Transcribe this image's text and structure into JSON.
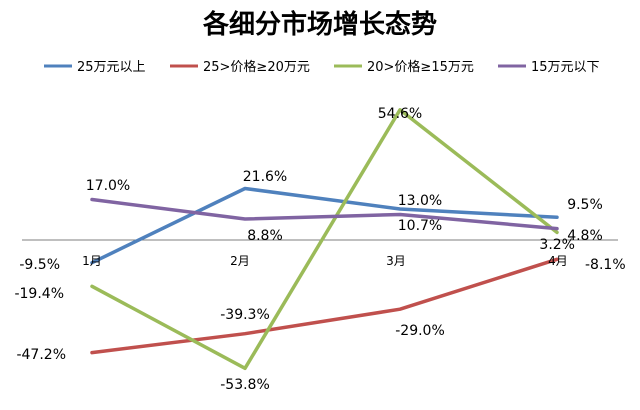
{
  "chart_data": {
    "type": "line",
    "title": "各细分市场增长态势",
    "categories": [
      "1月",
      "2月",
      "3月",
      "4月"
    ],
    "series": [
      {
        "name": "25万元以上",
        "values": [
          -9.5,
          21.6,
          13.0,
          9.5
        ],
        "labels": [
          "-9.5%",
          "21.6%",
          "13.0%",
          "9.5%"
        ],
        "color": "#4F81BD"
      },
      {
        "name": "25>价格≥20万元",
        "values": [
          -47.2,
          -39.3,
          -29.0,
          -8.1
        ],
        "labels": [
          "-47.2%",
          "-39.3%",
          "-29.0%",
          "-8.1%"
        ],
        "color": "#C0504D"
      },
      {
        "name": "20>价格≥15万元",
        "values": [
          -19.4,
          -53.8,
          54.6,
          3.2
        ],
        "labels": [
          "-19.4%",
          "-53.8%",
          "54.6%",
          "3.2%"
        ],
        "color": "#9BBB59"
      },
      {
        "name": "15万元以下",
        "values": [
          17.0,
          8.8,
          10.7,
          4.8
        ],
        "labels": [
          "17.0%",
          "8.8%",
          "10.7%",
          "4.8%"
        ],
        "color": "#8064A2"
      }
    ],
    "ylim": [
      -65,
      70
    ],
    "legend_position": "top",
    "grid": false
  }
}
